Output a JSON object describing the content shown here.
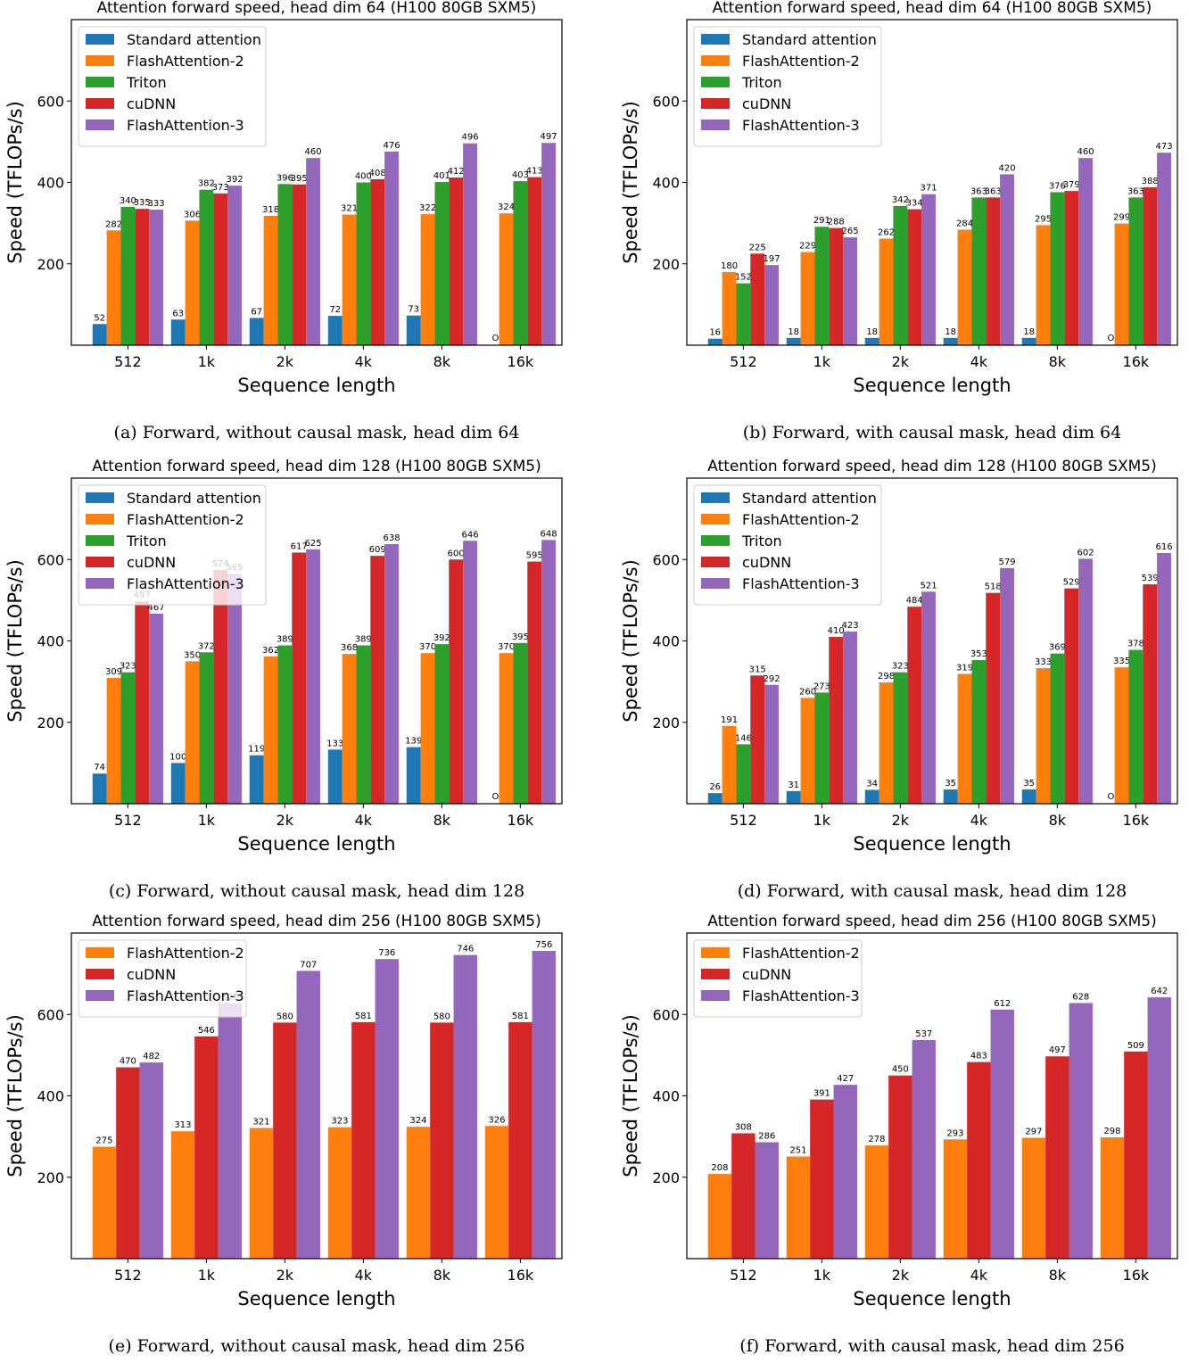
{
  "colors": {
    "Standard attention": "#1f77b4",
    "FlashAttention-2": "#ff7f0e",
    "Triton": "#2ca02c",
    "cuDNN": "#d62728",
    "FlashAttention-3": "#9467bd"
  },
  "chart_data": [
    {
      "type": "bar",
      "title": "Attention forward speed, head dim 64 (H100 80GB SXM5)",
      "caption": "(a) Forward, without causal mask, head dim 64",
      "xlabel": "Sequence length",
      "ylabel": "Speed (TFLOPs/s)",
      "ylim": [
        0,
        800
      ],
      "yticks": [
        200,
        400,
        600
      ],
      "legend": "top-left",
      "categories": [
        "512",
        "1k",
        "2k",
        "4k",
        "8k",
        "16k"
      ],
      "series": [
        {
          "name": "Standard attention",
          "values": [
            52,
            63,
            67,
            72,
            73,
            null
          ],
          "labels": [
            "52",
            "63",
            "67",
            "72",
            "73",
            "OOM"
          ]
        },
        {
          "name": "FlashAttention-2",
          "values": [
            282,
            306,
            318,
            321,
            322,
            324
          ]
        },
        {
          "name": "Triton",
          "values": [
            340,
            382,
            396,
            400,
            401,
            403
          ]
        },
        {
          "name": "cuDNN",
          "values": [
            335,
            373,
            395,
            408,
            412,
            413
          ]
        },
        {
          "name": "FlashAttention-3",
          "values": [
            333,
            392,
            460,
            476,
            496,
            497
          ]
        }
      ]
    },
    {
      "type": "bar",
      "title": "Attention forward speed, head dim 64 (H100 80GB SXM5)",
      "caption": "(b) Forward, with causal mask, head dim 64",
      "xlabel": "Sequence length",
      "ylabel": "Speed (TFLOPs/s)",
      "ylim": [
        0,
        800
      ],
      "yticks": [
        200,
        400,
        600
      ],
      "legend": "top-left",
      "categories": [
        "512",
        "1k",
        "2k",
        "4k",
        "8k",
        "16k"
      ],
      "series": [
        {
          "name": "Standard attention",
          "values": [
            16,
            18,
            18,
            18,
            18,
            null
          ],
          "labels": [
            "16",
            "18",
            "18",
            "18",
            "18",
            "OOM"
          ]
        },
        {
          "name": "FlashAttention-2",
          "values": [
            180,
            229,
            262,
            284,
            295,
            299
          ]
        },
        {
          "name": "Triton",
          "values": [
            152,
            291,
            342,
            363,
            376,
            363
          ]
        },
        {
          "name": "cuDNN",
          "values": [
            225,
            288,
            334,
            363,
            379,
            388
          ]
        },
        {
          "name": "FlashAttention-3",
          "values": [
            197,
            265,
            371,
            420,
            460,
            473
          ]
        }
      ]
    },
    {
      "type": "bar",
      "title": "Attention forward speed, head dim 128 (H100 80GB SXM5)",
      "caption": "(c) Forward, without causal mask, head dim 128",
      "xlabel": "Sequence length",
      "ylabel": "Speed (TFLOPs/s)",
      "ylim": [
        0,
        800
      ],
      "yticks": [
        200,
        400,
        600
      ],
      "legend": "top-left",
      "categories": [
        "512",
        "1k",
        "2k",
        "4k",
        "8k",
        "16k"
      ],
      "series": [
        {
          "name": "Standard attention",
          "values": [
            74,
            100,
            119,
            133,
            139,
            null
          ],
          "labels": [
            "74",
            "100",
            "119",
            "133",
            "139",
            "OOM"
          ]
        },
        {
          "name": "FlashAttention-2",
          "values": [
            309,
            350,
            362,
            368,
            370,
            370
          ]
        },
        {
          "name": "Triton",
          "values": [
            323,
            372,
            389,
            389,
            392,
            395
          ]
        },
        {
          "name": "cuDNN",
          "values": [
            497,
            574,
            617,
            609,
            600,
            595
          ]
        },
        {
          "name": "FlashAttention-3",
          "values": [
            467,
            565,
            625,
            638,
            646,
            648
          ]
        }
      ]
    },
    {
      "type": "bar",
      "title": "Attention forward speed, head dim 128 (H100 80GB SXM5)",
      "caption": "(d) Forward, with causal mask, head dim 128",
      "xlabel": "Sequence length",
      "ylabel": "Speed (TFLOPs/s)",
      "ylim": [
        0,
        800
      ],
      "yticks": [
        200,
        400,
        600
      ],
      "legend": "top-left",
      "categories": [
        "512",
        "1k",
        "2k",
        "4k",
        "8k",
        "16k"
      ],
      "series": [
        {
          "name": "Standard attention",
          "values": [
            26,
            31,
            34,
            35,
            35,
            null
          ],
          "labels": [
            "26",
            "31",
            "34",
            "35",
            "35",
            "OOM"
          ]
        },
        {
          "name": "FlashAttention-2",
          "values": [
            191,
            260,
            298,
            319,
            333,
            335
          ]
        },
        {
          "name": "Triton",
          "values": [
            146,
            273,
            323,
            353,
            369,
            378
          ]
        },
        {
          "name": "cuDNN",
          "values": [
            315,
            410,
            484,
            518,
            529,
            539
          ]
        },
        {
          "name": "FlashAttention-3",
          "values": [
            292,
            423,
            521,
            579,
            602,
            616
          ]
        }
      ]
    },
    {
      "type": "bar",
      "title": "Attention forward speed, head dim 256 (H100 80GB SXM5)",
      "caption": "(e) Forward, without causal mask, head dim 256",
      "xlabel": "Sequence length",
      "ylabel": "Speed (TFLOPs/s)",
      "ylim": [
        0,
        800
      ],
      "yticks": [
        200,
        400,
        600
      ],
      "legend": "top-left",
      "categories": [
        "512",
        "1k",
        "2k",
        "4k",
        "8k",
        "16k"
      ],
      "series": [
        {
          "name": "FlashAttention-2",
          "values": [
            275,
            313,
            321,
            323,
            324,
            326
          ]
        },
        {
          "name": "cuDNN",
          "values": [
            470,
            546,
            580,
            581,
            580,
            581
          ]
        },
        {
          "name": "FlashAttention-3",
          "values": [
            482,
            627,
            707,
            736,
            746,
            756
          ]
        }
      ]
    },
    {
      "type": "bar",
      "title": "Attention forward speed, head dim 256 (H100 80GB SXM5)",
      "caption": "(f) Forward, with causal mask, head dim 256",
      "xlabel": "Sequence length",
      "ylabel": "Speed (TFLOPs/s)",
      "ylim": [
        0,
        800
      ],
      "yticks": [
        200,
        400,
        600
      ],
      "legend": "top-left",
      "categories": [
        "512",
        "1k",
        "2k",
        "4k",
        "8k",
        "16k"
      ],
      "series": [
        {
          "name": "FlashAttention-2",
          "values": [
            208,
            251,
            278,
            293,
            297,
            298
          ]
        },
        {
          "name": "cuDNN",
          "values": [
            308,
            391,
            450,
            483,
            497,
            509
          ]
        },
        {
          "name": "FlashAttention-3",
          "values": [
            286,
            427,
            537,
            612,
            628,
            642
          ]
        }
      ]
    }
  ]
}
